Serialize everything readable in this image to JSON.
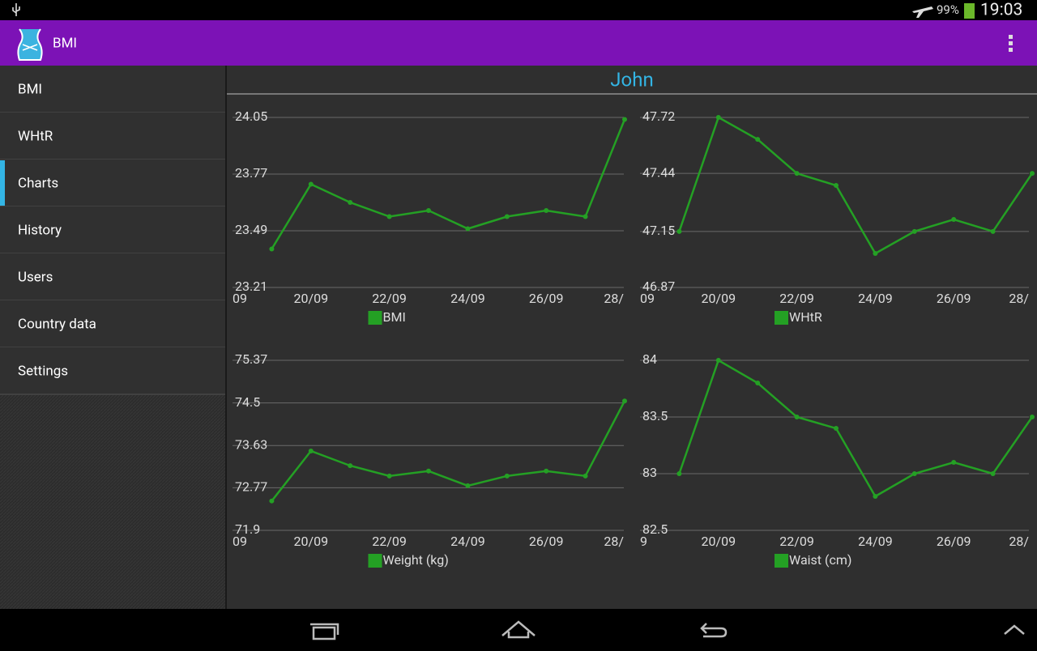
{
  "status_bar": {
    "battery": "99%",
    "time": "19:03"
  },
  "app_bar": {
    "title": "BMI"
  },
  "menu": {
    "items": [
      "BMI",
      "WHtR",
      "Charts",
      "History",
      "Users",
      "Country data",
      "Settings"
    ],
    "selected": 2
  },
  "content": {
    "title": "John"
  },
  "chart_data": [
    {
      "type": "line",
      "x_tick_labels": [
        "09",
        "20/09",
        "22/09",
        "24/09",
        "26/09",
        "28/"
      ],
      "series": [
        {
          "name": "BMI",
          "color": "#24a024",
          "values": [
            23.4,
            23.72,
            23.63,
            23.56,
            23.59,
            23.5,
            23.56,
            23.59,
            23.56,
            24.04
          ]
        }
      ],
      "ylim": [
        23.21,
        24.05
      ],
      "yticks": [
        24.05,
        23.77,
        23.49,
        23.21
      ],
      "grid": true
    },
    {
      "type": "line",
      "x_tick_labels": [
        "09",
        "20/09",
        "22/09",
        "24/09",
        "26/09",
        "28/"
      ],
      "series": [
        {
          "name": "WHtR",
          "color": "#24a024",
          "values": [
            47.15,
            47.72,
            47.61,
            47.44,
            47.38,
            47.04,
            47.15,
            47.21,
            47.15,
            47.44
          ]
        }
      ],
      "ylim": [
        46.87,
        47.72
      ],
      "yticks": [
        47.72,
        47.44,
        47.15,
        46.87
      ],
      "grid": true
    },
    {
      "type": "line",
      "x_tick_labels": [
        "09",
        "20/09",
        "22/09",
        "24/09",
        "26/09",
        "28/"
      ],
      "series": [
        {
          "name": "Weight (kg)",
          "color": "#24a024",
          "values": [
            72.5,
            73.52,
            73.22,
            73.01,
            73.11,
            72.81,
            73.01,
            73.11,
            73.01,
            74.54
          ]
        }
      ],
      "ylim": [
        71.9,
        75.37
      ],
      "yticks": [
        75.37,
        74.5,
        73.63,
        72.77,
        71.9
      ],
      "grid": true
    },
    {
      "type": "line",
      "x_tick_labels": [
        "9",
        "20/09",
        "22/09",
        "24/09",
        "26/09",
        "28/"
      ],
      "series": [
        {
          "name": "Waist (cm)",
          "color": "#24a024",
          "values": [
            83.0,
            84.0,
            83.8,
            83.5,
            83.4,
            82.8,
            83.0,
            83.1,
            83.0,
            83.5
          ]
        }
      ],
      "ylim": [
        82.5,
        84
      ],
      "yticks": [
        84,
        83.5,
        83,
        82.5
      ],
      "grid": true
    }
  ]
}
